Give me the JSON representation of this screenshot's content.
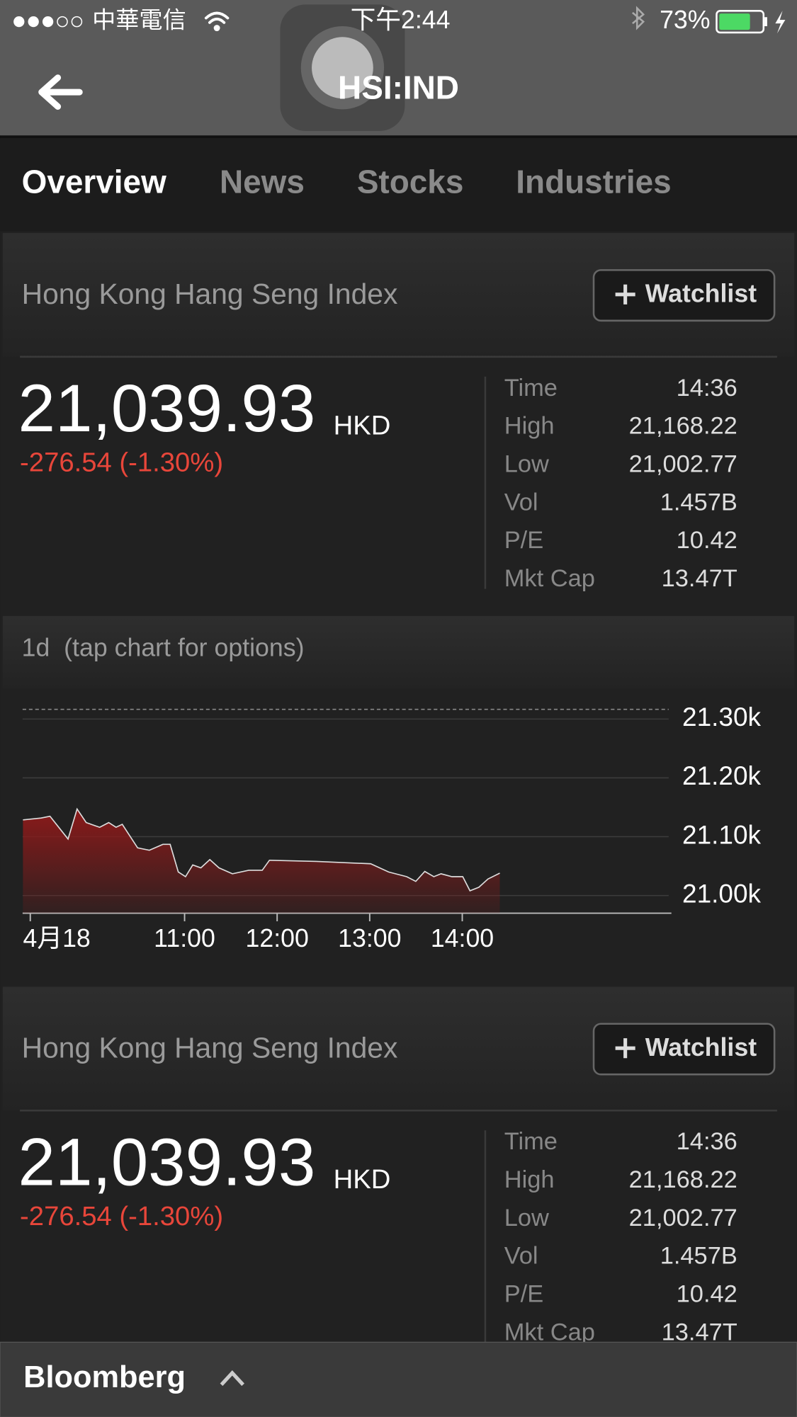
{
  "status_bar": {
    "carrier": "中華電信",
    "time": "下午2:44",
    "battery": "73%"
  },
  "header": {
    "title": "HSI:IND"
  },
  "tabs": [
    "Overview",
    "News",
    "Stocks",
    "Industries"
  ],
  "quotes": [
    {
      "name": "Hong Kong Hang Seng Index",
      "button": "Watchlist",
      "price": "21,039.93",
      "currency": "HKD",
      "change": "-276.54 (-1.30%)",
      "stats": [
        {
          "label": "Time",
          "value": "14:36"
        },
        {
          "label": "High",
          "value": "21,168.22"
        },
        {
          "label": "Low",
          "value": "21,002.77"
        },
        {
          "label": "Vol",
          "value": "1.457B"
        },
        {
          "label": "P/E",
          "value": "10.42"
        },
        {
          "label": "Mkt Cap",
          "value": "13.47T"
        }
      ]
    },
    {
      "name": "Hong Kong Hang Seng Index",
      "button": "Watchlist",
      "price": "21,039.93",
      "currency": "HKD",
      "change": "-276.54 (-1.30%)",
      "stats": [
        {
          "label": "Time",
          "value": "14:36"
        },
        {
          "label": "High",
          "value": "21,168.22"
        },
        {
          "label": "Low",
          "value": "21,002.77"
        },
        {
          "label": "Vol",
          "value": "1.457B"
        },
        {
          "label": "P/E",
          "value": "10.42"
        },
        {
          "label": "Mkt Cap",
          "value": "13.47T"
        }
      ]
    }
  ],
  "chart_header": "1d  (tap chart for options)",
  "chart_data": {
    "type": "area",
    "x": [
      9.254,
      9.449,
      9.546,
      9.741,
      9.839,
      9.937,
      10.083,
      10.18,
      10.259,
      10.327,
      10.493,
      10.62,
      10.766,
      10.844,
      10.932,
      11.01,
      11.088,
      11.176,
      11.273,
      11.371,
      11.517,
      11.693,
      11.839,
      11.917,
      12.424,
      13.01,
      13.205,
      13.4,
      13.498,
      13.595,
      13.693,
      13.771,
      13.888,
      14.005,
      14.083,
      14.18,
      14.278,
      14.405
    ],
    "values": [
      21128.6,
      21131.6,
      21134.7,
      21096,
      21147,
      21124,
      21116,
      21124,
      21116,
      21121,
      21081,
      21077,
      21087,
      21087,
      21040,
      21032,
      21052,
      21047,
      21061,
      21047,
      21037,
      21043,
      21043,
      21060,
      21058,
      21054,
      21040,
      21032,
      21024,
      21041,
      21032,
      21037,
      21032,
      21032,
      21008,
      21014,
      21028,
      21038
    ],
    "color": "#8b1a1a",
    "line_color": "#dddddd",
    "prev_close": 21316.47,
    "xlim": [
      9.25,
      16.23
    ],
    "ylim": [
      20970,
      21340
    ],
    "xticks": [
      {
        "value": 9.333,
        "label": "4月18"
      },
      {
        "value": 11,
        "label": "11:00"
      },
      {
        "value": 12,
        "label": "12:00"
      },
      {
        "value": 13,
        "label": "13:00"
      },
      {
        "value": 14,
        "label": "14:00"
      }
    ],
    "yticks": [
      {
        "value": 21300,
        "label": "21.30k"
      },
      {
        "value": 21200,
        "label": "21.20k"
      },
      {
        "value": 21100,
        "label": "21.10k"
      },
      {
        "value": 21000,
        "label": "21.00k"
      }
    ],
    "grid": true
  },
  "footer": {
    "brand": "Bloomberg"
  }
}
